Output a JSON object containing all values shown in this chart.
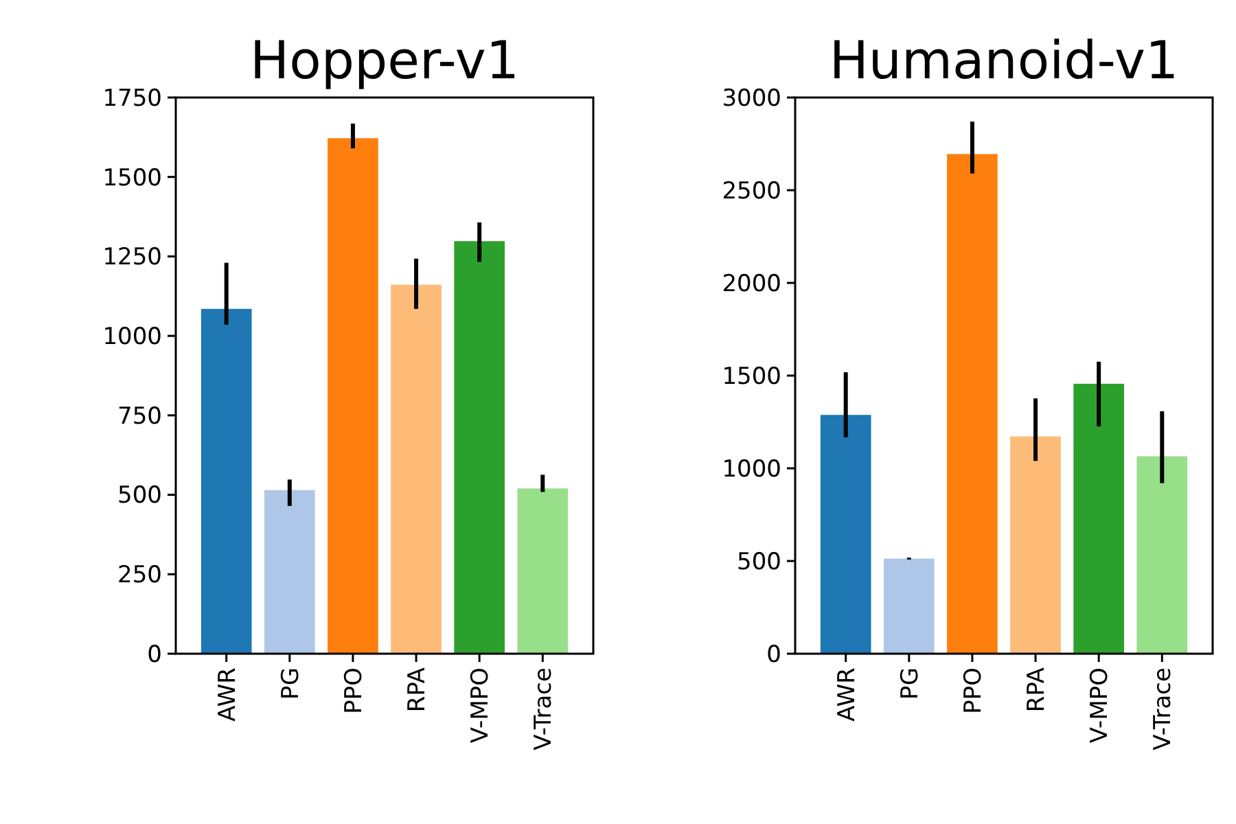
{
  "chart_data": [
    {
      "type": "bar",
      "title": "Hopper-v1",
      "categories": [
        "AWR",
        "PG",
        "PPO",
        "RPA",
        "V-MPO",
        "V-Trace"
      ],
      "values": [
        1085,
        515,
        1622,
        1161,
        1298,
        520
      ],
      "errors": [
        [
          1035,
          1230
        ],
        [
          465,
          548
        ],
        [
          1590,
          1668
        ],
        [
          1085,
          1243
        ],
        [
          1233,
          1357
        ],
        [
          509,
          563
        ]
      ],
      "colors": [
        "#1f77b4",
        "#aec7e8",
        "#ff7f0e",
        "#ffbb78",
        "#2ca02c",
        "#98df8a"
      ],
      "ylim": [
        0,
        1750
      ],
      "yticks": [
        0,
        250,
        500,
        750,
        1000,
        1250,
        1500,
        1750
      ]
    },
    {
      "type": "bar",
      "title": "Humanoid-v1",
      "categories": [
        "AWR",
        "PG",
        "PPO",
        "RPA",
        "V-MPO",
        "V-Trace"
      ],
      "values": [
        1288,
        513,
        2695,
        1172,
        1456,
        1065
      ],
      "errors": [
        [
          1167,
          1518
        ],
        [
          508,
          518
        ],
        [
          2590,
          2870
        ],
        [
          1040,
          1377
        ],
        [
          1226,
          1575
        ],
        [
          920,
          1308
        ]
      ],
      "colors": [
        "#1f77b4",
        "#aec7e8",
        "#ff7f0e",
        "#ffbb78",
        "#2ca02c",
        "#98df8a"
      ],
      "ylim": [
        0,
        3000
      ],
      "yticks": [
        0,
        500,
        1000,
        1500,
        2000,
        2500,
        3000
      ]
    }
  ]
}
